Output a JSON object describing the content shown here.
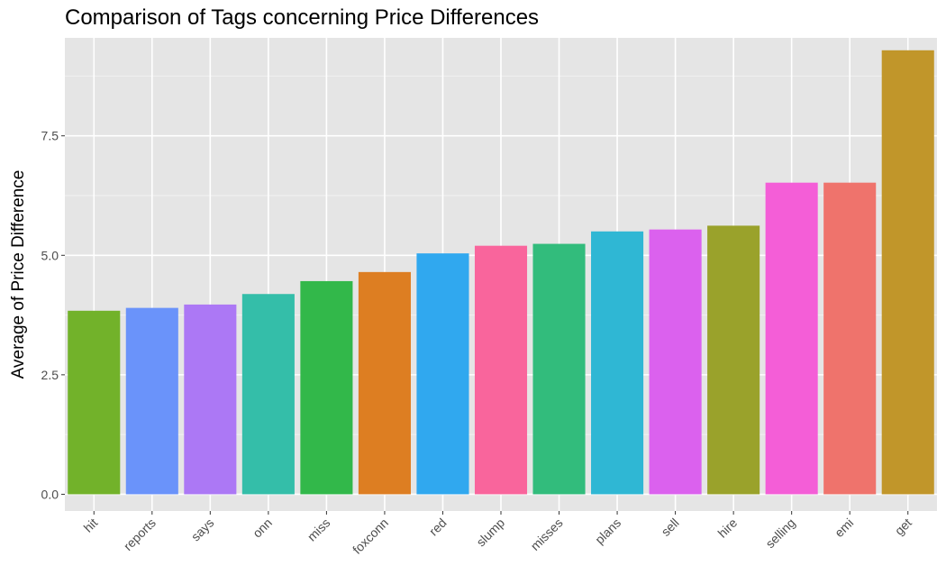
{
  "chart_data": {
    "type": "bar",
    "title": "Comparison of Tags concerning Price Differences",
    "xlabel": "",
    "ylabel": "Average of Price Difference",
    "ylim": [
      -0.35,
      9.55
    ],
    "yticks": [
      0.0,
      2.5,
      5.0,
      7.5
    ],
    "ytick_labels": [
      "0.0",
      "2.5",
      "5.0",
      "7.5"
    ],
    "grid": true,
    "legend": "none",
    "categories": [
      "hit",
      "reports",
      "says",
      "onn",
      "miss",
      "foxconn",
      "red",
      "slump",
      "misses",
      "plans",
      "sell",
      "hire",
      "selling",
      "emi",
      "get"
    ],
    "values": [
      3.84,
      3.9,
      3.97,
      4.19,
      4.46,
      4.65,
      5.04,
      5.2,
      5.24,
      5.5,
      5.54,
      5.62,
      6.52,
      6.52,
      9.29
    ],
    "colors": [
      "#72B22A",
      "#6A93FA",
      "#AC78F5",
      "#34BEA9",
      "#32B84A",
      "#DD7E22",
      "#30A8EF",
      "#F9659C",
      "#32BC7C",
      "#2FB7D4",
      "#DB61EE",
      "#9AA22B",
      "#F45ED7",
      "#EF736C",
      "#C1962A"
    ]
  }
}
